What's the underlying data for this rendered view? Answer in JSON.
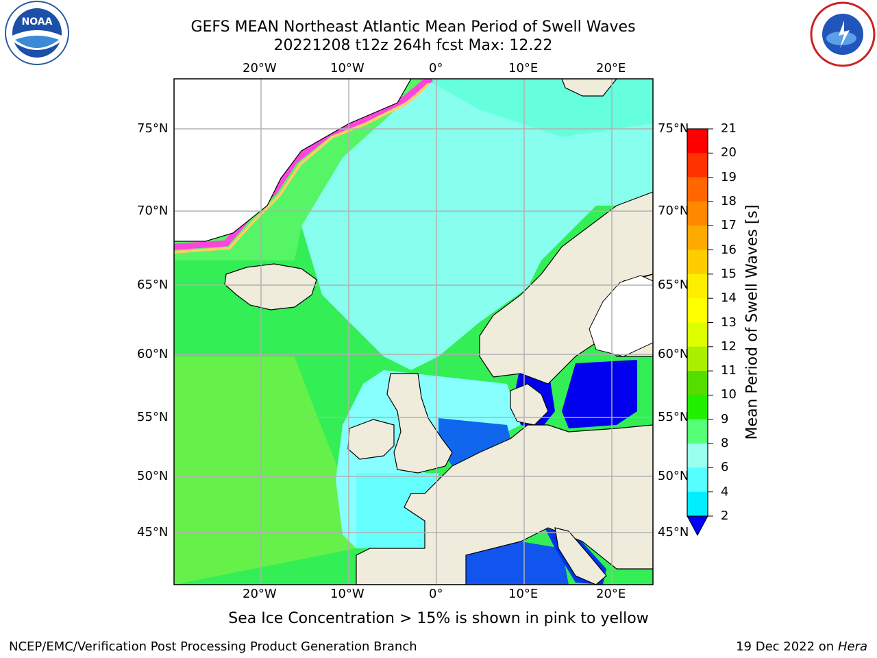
{
  "title_line1": "GEFS MEAN Northeast Atlantic Mean Period of Swell Waves",
  "title_line2": "20221208 t12z 264h fcst   Max: 12.22",
  "logos": {
    "left": "NOAA",
    "right": "NATIONAL WEATHER SERVICE"
  },
  "map": {
    "lon_labels": [
      "20°W",
      "10°W",
      "0°",
      "10°E",
      "20°E"
    ],
    "lat_labels": [
      "75°N",
      "70°N",
      "65°N",
      "60°N",
      "55°N",
      "50°N",
      "45°N"
    ],
    "colors": {
      "land": "#efecdc",
      "ocean_green": "#33ee33",
      "ocean_cyan": "#88ffff",
      "ocean_blue": "#0033ee",
      "grid": "#b0b0b0"
    }
  },
  "colorbar": {
    "title": "Mean Period of Swell Waves [s]",
    "ticks": [
      "21",
      "20",
      "19",
      "18",
      "17",
      "16",
      "15",
      "14",
      "13",
      "12",
      "11",
      "10",
      "9",
      "8",
      "6",
      "4",
      "2"
    ],
    "colors": [
      "#ff0000",
      "#ff3300",
      "#ff6600",
      "#ff8800",
      "#ffaa00",
      "#ffcc00",
      "#ffee00",
      "#ffff00",
      "#ddff00",
      "#aaee00",
      "#55dd00",
      "#22ee00",
      "#55ff77",
      "#99ffee",
      "#55ffff",
      "#00eeff",
      "#0077ff",
      "#0000ff"
    ]
  },
  "caption": "Sea Ice Concentration > 15% is shown in pink to yellow",
  "footer_left": "NCEP/EMC/Verification Post Processing Product Generation Branch",
  "footer_right_prefix": "19 Dec 2022 on",
  "footer_right_host": "Hera"
}
